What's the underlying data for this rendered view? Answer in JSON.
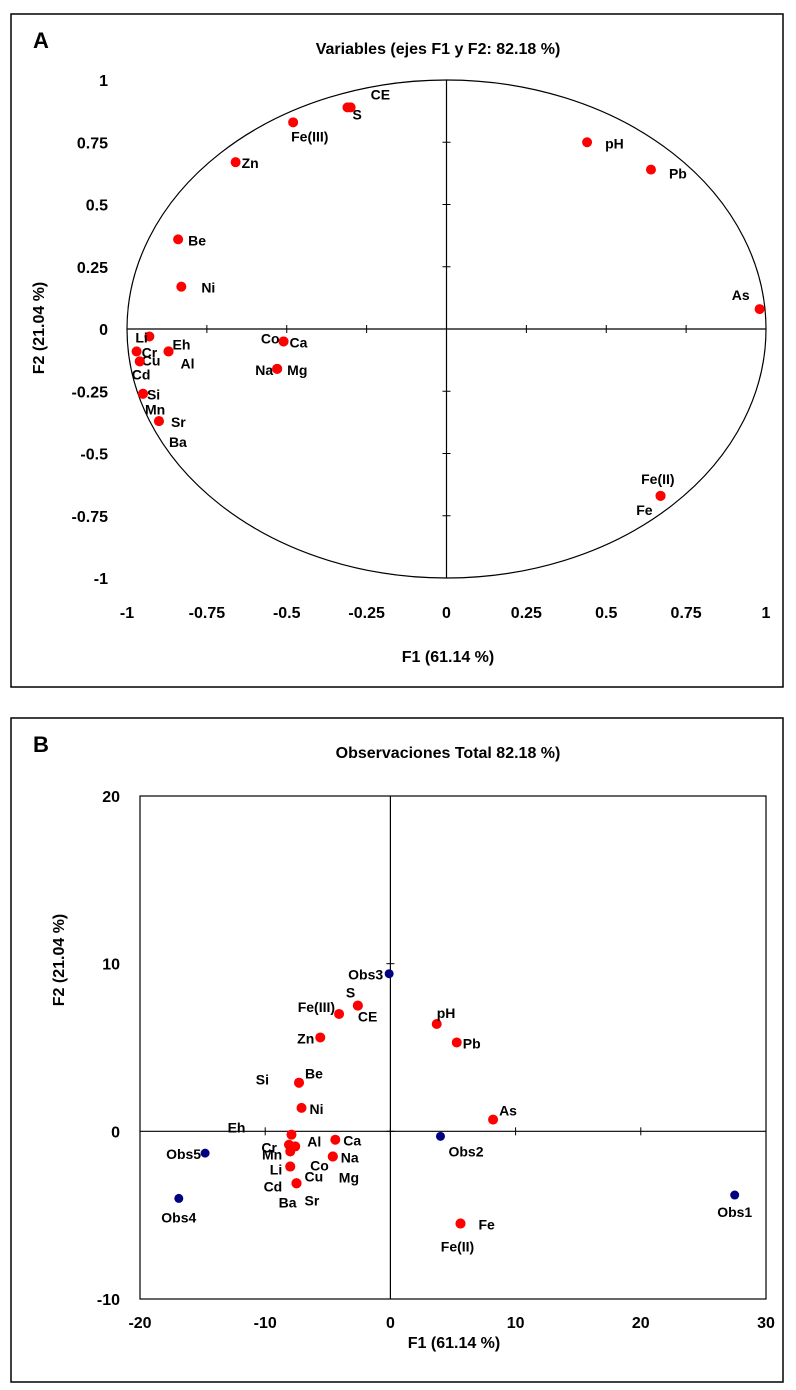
{
  "chart_data": [
    {
      "panel": "A",
      "type": "scatter",
      "title": "Variables (ejes F1 y F2: 82.18 %)",
      "xlabel": "F1 (61.14 %)",
      "ylabel": "F2 (21.04 %)",
      "xlim": [
        -1,
        1
      ],
      "ylim": [
        -1,
        1
      ],
      "xticks": [
        "-1",
        "-0.75",
        "-0.5",
        "-0.25",
        "0",
        "0.25",
        "0.5",
        "0.75",
        "1"
      ],
      "yticks": [
        "1",
        "0.75",
        "0.5",
        "0.25",
        "0",
        "-0.25",
        "-0.5",
        "-0.75",
        "-1"
      ],
      "correlation_circle": true,
      "grid": false,
      "point_color": "#ff0000",
      "points": [
        {
          "label": "CE",
          "x": -0.3,
          "y": 0.89
        },
        {
          "label": "S",
          "x": -0.31,
          "y": 0.89
        },
        {
          "label": "Fe(III)",
          "x": -0.48,
          "y": 0.83
        },
        {
          "label": "Zn",
          "x": -0.66,
          "y": 0.67
        },
        {
          "label": "Be",
          "x": -0.84,
          "y": 0.36
        },
        {
          "label": "Ni",
          "x": -0.83,
          "y": 0.17
        },
        {
          "label": "pH",
          "x": 0.44,
          "y": 0.75
        },
        {
          "label": "Pb",
          "x": 0.64,
          "y": 0.64
        },
        {
          "label": "As",
          "x": 0.98,
          "y": 0.08
        },
        {
          "label": "Li",
          "x": -0.93,
          "y": -0.03
        },
        {
          "label": "Cr",
          "x": -0.97,
          "y": -0.09
        },
        {
          "label": "Eh",
          "x": -0.87,
          "y": -0.09
        },
        {
          "label": "Al",
          "x": -0.87,
          "y": -0.09
        },
        {
          "label": "Cu",
          "x": -0.96,
          "y": -0.13
        },
        {
          "label": "Cd",
          "x": -0.96,
          "y": -0.13
        },
        {
          "label": "Si",
          "x": -0.95,
          "y": -0.26
        },
        {
          "label": "Mn",
          "x": -0.95,
          "y": -0.26
        },
        {
          "label": "Sr",
          "x": -0.9,
          "y": -0.37
        },
        {
          "label": "Ba",
          "x": -0.9,
          "y": -0.37
        },
        {
          "label": "Co",
          "x": -0.51,
          "y": -0.05
        },
        {
          "label": "Ca",
          "x": -0.51,
          "y": -0.05
        },
        {
          "label": "Na",
          "x": -0.53,
          "y": -0.16
        },
        {
          "label": "Mg",
          "x": -0.53,
          "y": -0.16
        },
        {
          "label": "Fe(II)",
          "x": 0.67,
          "y": -0.67
        },
        {
          "label": "Fe",
          "x": 0.67,
          "y": -0.67
        }
      ]
    },
    {
      "panel": "B",
      "type": "scatter",
      "title": "Observaciones Total 82.18 %)",
      "xlabel": "F1 (61.14 %)",
      "ylabel": "F2 (21.04 %)",
      "xlim": [
        -20,
        30
      ],
      "ylim": [
        -10,
        20
      ],
      "xticks": [
        "-20",
        "-10",
        "0",
        "10",
        "20",
        "30"
      ],
      "yticks": [
        "20",
        "10",
        "0",
        "-10"
      ],
      "grid": false,
      "observation_color": "#000080",
      "variable_color": "#ff0000",
      "observations": [
        {
          "label": "Obs1",
          "x": 27.5,
          "y": -3.8
        },
        {
          "label": "Obs2",
          "x": 4,
          "y": -0.3
        },
        {
          "label": "Obs3",
          "x": -0.1,
          "y": 9.4
        },
        {
          "label": "Obs4",
          "x": -16.9,
          "y": -4
        },
        {
          "label": "Obs5",
          "x": -14.8,
          "y": -1.3
        }
      ],
      "variables": [
        {
          "label": "S",
          "x": -2.6,
          "y": 7.5
        },
        {
          "label": "CE",
          "x": -2.6,
          "y": 7.5
        },
        {
          "label": "Fe(III)",
          "x": -4.1,
          "y": 7
        },
        {
          "label": "Zn",
          "x": -5.6,
          "y": 5.6
        },
        {
          "label": "pH",
          "x": 3.7,
          "y": 6.4
        },
        {
          "label": "Pb",
          "x": 5.3,
          "y": 5.3
        },
        {
          "label": "Be",
          "x": -7.3,
          "y": 2.9
        },
        {
          "label": "Si",
          "x": -7.3,
          "y": 2.9
        },
        {
          "label": "Ni",
          "x": -7.1,
          "y": 1.4
        },
        {
          "label": "As",
          "x": 8.2,
          "y": 0.7
        },
        {
          "label": "Eh",
          "x": -7.9,
          "y": -0.2
        },
        {
          "label": "Cr",
          "x": -8.1,
          "y": -0.8
        },
        {
          "label": "Al",
          "x": -7.6,
          "y": -0.9
        },
        {
          "label": "Mn",
          "x": -8,
          "y": -1.2
        },
        {
          "label": "Li",
          "x": -8,
          "y": -2.1
        },
        {
          "label": "Cd",
          "x": -8,
          "y": -2.1
        },
        {
          "label": "Cu",
          "x": -7.5,
          "y": -3.1
        },
        {
          "label": "Ba",
          "x": -7.5,
          "y": -3.1
        },
        {
          "label": "Sr",
          "x": -7.5,
          "y": -3.1
        },
        {
          "label": "Ca",
          "x": -4.4,
          "y": -0.5
        },
        {
          "label": "Co",
          "x": -4.6,
          "y": -1.5
        },
        {
          "label": "Na",
          "x": -4.6,
          "y": -1.5
        },
        {
          "label": "Mg",
          "x": -4.6,
          "y": -1.5
        },
        {
          "label": "Fe",
          "x": 5.6,
          "y": -5.5
        },
        {
          "label": "Fe(II)",
          "x": 5.6,
          "y": -5.5
        }
      ]
    }
  ]
}
